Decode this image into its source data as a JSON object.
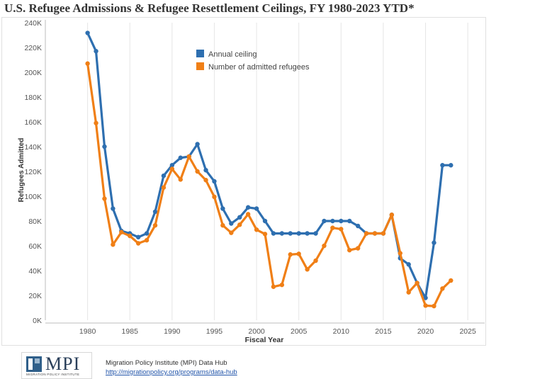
{
  "title": "U.S. Refugee Admissions & Refugee Resettlement Ceilings, FY 1980-2023 YTD*",
  "footer": {
    "logo_text": "MPI",
    "logo_sub": "MIGRATION POLICY INSTITUTE",
    "line1": "Migration Policy Institute (MPI) Data Hub",
    "link": "http://migrationpolicy.org/programs/data-hub"
  },
  "chart_data": {
    "type": "line",
    "title": "U.S. Refugee Admissions & Refugee Resettlement Ceilings, FY 1980-2023 YTD*",
    "xlabel": "Fiscal Year",
    "ylabel": "Refugees Admitted",
    "xlim": [
      1975,
      2027
    ],
    "ylim": [
      0,
      240000
    ],
    "x_ticks": [
      1980,
      1985,
      1990,
      1995,
      2000,
      2005,
      2010,
      2015,
      2020,
      2025
    ],
    "x_tick_labels": [
      "1980",
      "1985",
      "1990",
      "1995",
      "2000",
      "2005",
      "2010",
      "2015",
      "2020",
      "2025"
    ],
    "y_ticks": [
      0,
      20000,
      40000,
      60000,
      80000,
      100000,
      120000,
      140000,
      160000,
      180000,
      200000,
      220000,
      240000
    ],
    "y_tick_labels": [
      "0K",
      "20K",
      "40K",
      "60K",
      "80K",
      "100K",
      "120K",
      "140K",
      "160K",
      "180K",
      "200K",
      "220K",
      "240K"
    ],
    "grid": "vertical",
    "legend_position": "top-center",
    "x": [
      1980,
      1981,
      1982,
      1983,
      1984,
      1985,
      1986,
      1987,
      1988,
      1989,
      1990,
      1991,
      1992,
      1993,
      1994,
      1995,
      1996,
      1997,
      1998,
      1999,
      2000,
      2001,
      2002,
      2003,
      2004,
      2005,
      2006,
      2007,
      2008,
      2009,
      2010,
      2011,
      2012,
      2013,
      2014,
      2015,
      2016,
      2017,
      2018,
      2019,
      2020,
      2021,
      2022,
      2023
    ],
    "series": [
      {
        "name": "Annual ceiling",
        "color": "#2e6fb0",
        "values": [
          231700,
          217000,
          140000,
          90000,
          72000,
          70000,
          67000,
          70000,
          87500,
          116500,
          125000,
          131000,
          132000,
          142000,
          121000,
          112000,
          90000,
          78000,
          83000,
          91000,
          90000,
          80000,
          70000,
          70000,
          70000,
          70000,
          70000,
          70000,
          80000,
          80000,
          80000,
          80000,
          76000,
          70000,
          70000,
          70000,
          85000,
          50000,
          45000,
          30000,
          18000,
          62500,
          125000,
          125000
        ]
      },
      {
        "name": "Number of admitted refugees",
        "color": "#f07f16",
        "values": [
          207000,
          159000,
          98000,
          61000,
          71000,
          68000,
          62000,
          64500,
          76500,
          107000,
          122000,
          113500,
          132000,
          120000,
          113000,
          99500,
          76500,
          70500,
          77000,
          85500,
          73000,
          69500,
          27000,
          28500,
          53000,
          53500,
          41000,
          48000,
          60000,
          74500,
          73500,
          56500,
          58000,
          70000,
          70000,
          70000,
          85000,
          54000,
          22500,
          30000,
          11800,
          11400,
          25500,
          32000
        ]
      }
    ]
  }
}
